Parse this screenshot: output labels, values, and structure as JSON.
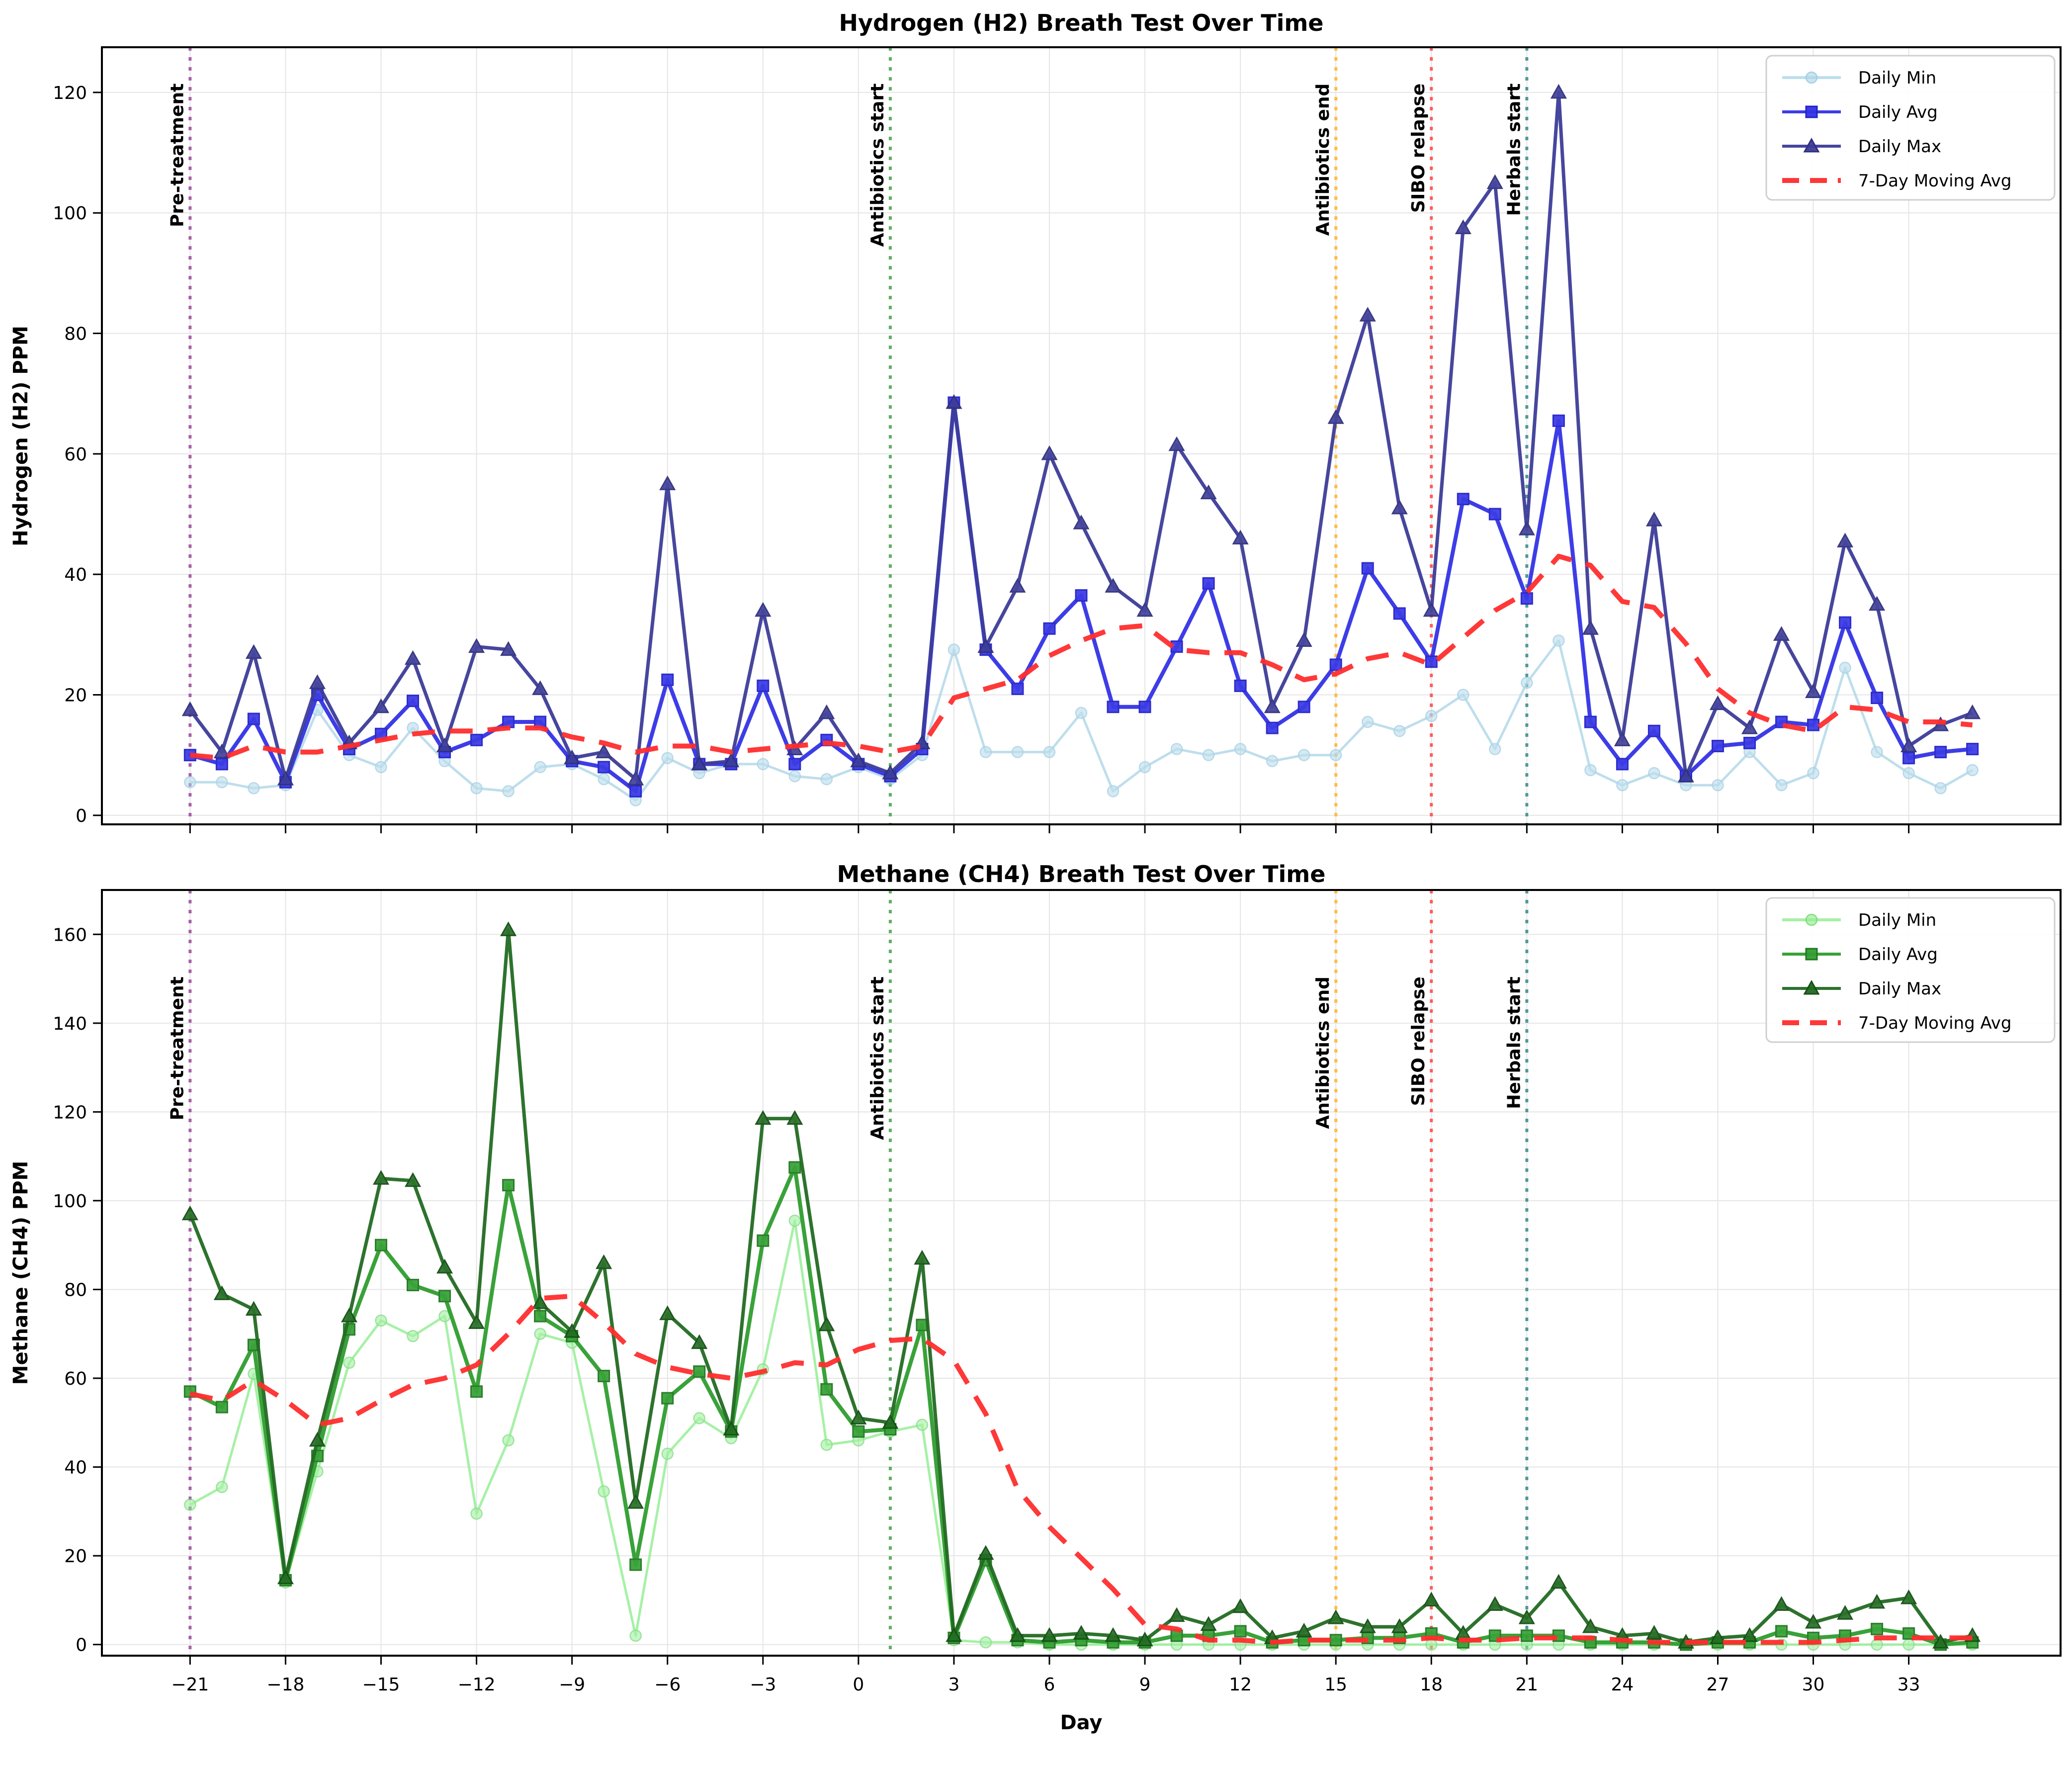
{
  "figure": {
    "xlabel": "Day",
    "xticks": [
      -21,
      -18,
      -15,
      -12,
      -9,
      -6,
      -3,
      0,
      3,
      6,
      9,
      12,
      15,
      18,
      21,
      24,
      27,
      30,
      33
    ],
    "days": [
      -21,
      -20,
      -19,
      -18,
      -17,
      -16,
      -15,
      -14,
      -13,
      -12,
      -11,
      -10,
      -9,
      -8,
      -7,
      -6,
      -5,
      -4,
      -3,
      -2,
      -1,
      0,
      1,
      2,
      3,
      4,
      5,
      6,
      7,
      8,
      9,
      10,
      11,
      12,
      13,
      14,
      15,
      16,
      17,
      18,
      19,
      20,
      21,
      22,
      23,
      24,
      25,
      26,
      27,
      28,
      29,
      30,
      31,
      32,
      33,
      34,
      35
    ],
    "events": [
      {
        "label": "Pre-treatment",
        "day": -21,
        "color": "#A050A0"
      },
      {
        "label": "Antibiotics start",
        "day": 1,
        "color": "#4CA64C"
      },
      {
        "label": "Antibiotics end",
        "day": 15,
        "color": "#FFB733"
      },
      {
        "label": "SIBO relapse",
        "day": 18,
        "color": "#FF4D4D"
      },
      {
        "label": "Herbals start",
        "day": 21,
        "color": "#3E8F8F"
      }
    ]
  },
  "chart_data": [
    {
      "type": "line",
      "title": "Hydrogen (H2) Breath Test Over Time",
      "ylabel": "Hydrogen (H2) PPM",
      "ylim": [
        -1.5,
        127.5
      ],
      "yticks": [
        0,
        20,
        40,
        60,
        80,
        100,
        120
      ],
      "grid": true,
      "legend_position": "upper right",
      "series": [
        {
          "name": "Daily Min",
          "marker": "circle",
          "color": "#AED6E8",
          "edge": "#96C8E0",
          "opacity": 0.8,
          "values": [
            5.5,
            5.5,
            4.5,
            5,
            17.5,
            10,
            8,
            14.5,
            9,
            4.5,
            4,
            8,
            8.5,
            6,
            2.5,
            9.5,
            7,
            8.5,
            8.5,
            6.5,
            6,
            8,
            6,
            10,
            27.5,
            10.5,
            10.5,
            10.5,
            17,
            4,
            8,
            11,
            10,
            11,
            9,
            10,
            10,
            15.5,
            14,
            16.5,
            20,
            11,
            22,
            29,
            7.5,
            5,
            7,
            5,
            5,
            10.5,
            5,
            7,
            24.5,
            10.5,
            7,
            4.5,
            7.5
          ]
        },
        {
          "name": "Daily Avg",
          "marker": "square",
          "color": "#3333E6",
          "edge": "#2222C8",
          "opacity": 0.95,
          "values": [
            10,
            8.5,
            16,
            5.5,
            20,
            11,
            13.5,
            19,
            10.5,
            12.5,
            15.5,
            15.5,
            9,
            8,
            4,
            22.5,
            8.5,
            8.5,
            21.5,
            8.5,
            12.5,
            8.5,
            6.5,
            11,
            68.5,
            27.5,
            21,
            31,
            36.5,
            18,
            18,
            28,
            38.5,
            21.5,
            14.5,
            18,
            25,
            41,
            33.5,
            25.5,
            52.5,
            50,
            36,
            65.5,
            15.5,
            8.5,
            14,
            6.5,
            11.5,
            12,
            15.5,
            15,
            32,
            19.5,
            9.5,
            10.5,
            11
          ]
        },
        {
          "name": "Daily Max",
          "marker": "triangle",
          "color": "#3D3D99",
          "edge": "#30307D",
          "opacity": 0.95,
          "values": [
            17.5,
            10.5,
            27,
            6,
            22,
            12,
            18,
            26,
            11.5,
            28,
            27.5,
            21,
            9.5,
            10.5,
            6,
            55,
            8.5,
            9,
            34,
            11,
            17,
            9,
            7,
            12,
            68.5,
            28,
            38,
            60,
            48.5,
            38,
            34,
            61.5,
            53.5,
            46,
            18,
            29,
            66,
            83,
            51,
            34,
            97.5,
            105,
            47.5,
            120,
            31,
            12.5,
            49,
            6.5,
            18.5,
            14.5,
            30,
            20.5,
            45.5,
            35,
            11.5,
            15,
            17
          ]
        },
        {
          "name": "7-Day Moving Avg",
          "marker": "none",
          "style": "dashed",
          "color": "#FF2D2D",
          "edge": "#FF2D2D",
          "opacity": 0.95,
          "values": [
            10,
            9.5,
            11.5,
            10.5,
            10.5,
            11.5,
            12.5,
            13.5,
            14,
            14,
            14.5,
            14.5,
            13,
            12,
            10.5,
            11.5,
            11.5,
            10.5,
            11,
            11.5,
            12,
            11.5,
            10.5,
            11.5,
            19.5,
            21,
            22.5,
            26.5,
            29,
            31,
            31.5,
            27.5,
            27,
            27,
            25,
            22.5,
            23.5,
            26,
            27,
            25,
            29.5,
            34,
            37,
            43,
            41.5,
            35.5,
            34.5,
            28.5,
            21,
            17,
            15,
            14,
            18,
            17.5,
            15.5,
            15.5,
            15
          ]
        }
      ]
    },
    {
      "type": "line",
      "title": "Methane (CH4) Breath Test Over Time",
      "ylabel": "Methane (CH4) PPM",
      "ylim": [
        -2.5,
        170
      ],
      "yticks": [
        0,
        20,
        40,
        60,
        80,
        100,
        120,
        140,
        160
      ],
      "grid": true,
      "legend_position": "upper right",
      "series": [
        {
          "name": "Daily Min",
          "marker": "circle",
          "color": "#90EE90",
          "edge": "#72D472",
          "opacity": 0.8,
          "values": [
            31.5,
            35.5,
            61,
            14,
            39,
            63.5,
            73,
            69.5,
            74,
            29.5,
            46,
            70,
            68,
            34.5,
            2,
            43,
            51,
            46.5,
            62,
            95.5,
            45,
            46,
            48,
            49.5,
            1,
            0.5,
            0.5,
            0,
            0,
            0,
            0,
            0,
            0,
            0,
            0,
            0,
            0,
            0,
            0,
            0,
            0,
            0,
            0,
            0,
            0,
            0,
            0,
            0,
            0,
            0,
            0,
            0,
            0,
            0,
            0,
            0,
            0
          ]
        },
        {
          "name": "Daily Avg",
          "marker": "square",
          "color": "#2F9E2F",
          "edge": "#227722",
          "opacity": 0.95,
          "values": [
            57,
            53.5,
            67.5,
            14.5,
            42.5,
            71,
            90,
            81,
            78.5,
            57,
            103.5,
            74,
            69.5,
            60.5,
            18,
            55.5,
            61.5,
            48,
            91,
            107.5,
            57.5,
            48,
            48.5,
            72,
            1.5,
            19,
            1,
            0.5,
            1,
            0.5,
            0.5,
            2,
            2,
            3,
            0.5,
            1,
            1,
            1.5,
            1.5,
            2.5,
            0.5,
            2,
            2,
            2,
            0.5,
            0.5,
            0.5,
            0,
            0.5,
            0.5,
            3,
            1.5,
            2,
            3.5,
            2.5,
            0,
            0.5
          ]
        },
        {
          "name": "Daily Max",
          "marker": "triangle",
          "color": "#226B22",
          "edge": "#154E15",
          "opacity": 0.95,
          "values": [
            97,
            79,
            75.5,
            15,
            46,
            74,
            105,
            104.5,
            85,
            72.5,
            161,
            77,
            70.5,
            86,
            32,
            74.5,
            68,
            48.5,
            118.5,
            118.5,
            72,
            51,
            50,
            87,
            2,
            20.5,
            2,
            2,
            2.5,
            2,
            1,
            6.5,
            4.5,
            8.5,
            1.5,
            3,
            6,
            4,
            4,
            10,
            2.5,
            9,
            6,
            14,
            4,
            2,
            2.5,
            0.5,
            1.5,
            2,
            9,
            5,
            7,
            9.5,
            10.5,
            0.5,
            2
          ]
        },
        {
          "name": "7-Day Moving Avg",
          "marker": "none",
          "style": "dashed",
          "color": "#FF2D2D",
          "edge": "#FF2D2D",
          "opacity": 0.95,
          "values": [
            56.5,
            55,
            59.5,
            55,
            49.5,
            51,
            55,
            58.5,
            60,
            63,
            70,
            78,
            78.5,
            72.5,
            65.5,
            62.5,
            61,
            60,
            61.5,
            63.5,
            63,
            66.5,
            68.5,
            69,
            64,
            52,
            35,
            26.5,
            19.5,
            12.5,
            4.5,
            3.5,
            1,
            1,
            0.5,
            1,
            1,
            1,
            1,
            1.5,
            1,
            1,
            1.5,
            1.5,
            1.5,
            1,
            0.5,
            0.5,
            0.5,
            0.5,
            0.5,
            0.5,
            1,
            1.5,
            1.5,
            1.5,
            1.5
          ]
        }
      ]
    }
  ]
}
